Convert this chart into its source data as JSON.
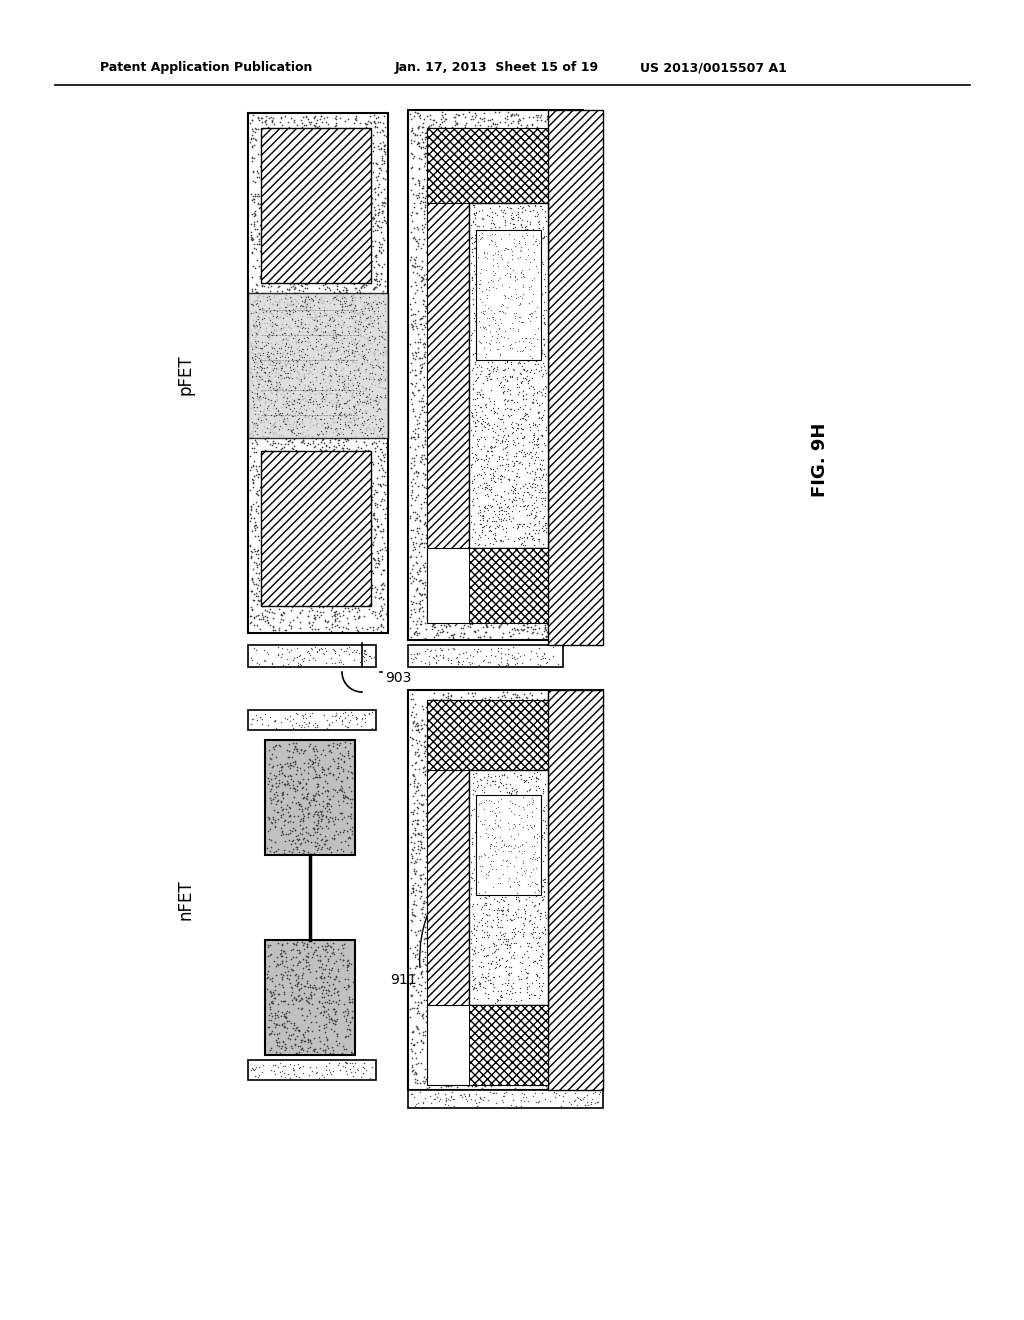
{
  "title_left": "Patent Application Publication",
  "title_center": "Jan. 17, 2013  Sheet 15 of 19",
  "title_right": "US 2013/0015507 A1",
  "fig_label": "FIG. 9H",
  "pfet_label": "pFET",
  "nfet_label": "nFET",
  "label_903": "903",
  "label_911": "911",
  "bg_color": "#ffffff"
}
